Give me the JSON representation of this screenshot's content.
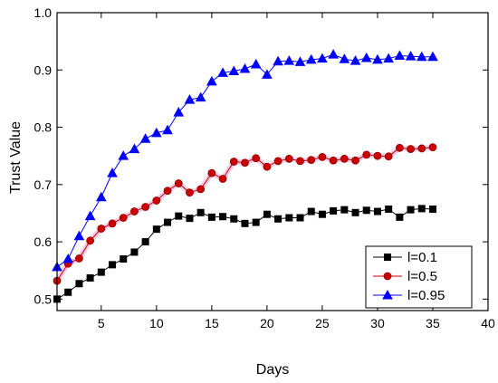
{
  "chart_data": {
    "type": "line",
    "xlabel": "Days",
    "ylabel": "Trust Value",
    "xlim": [
      1,
      40
    ],
    "ylim": [
      0.48,
      1.0
    ],
    "xticks": [
      5,
      10,
      15,
      20,
      25,
      30,
      35,
      40
    ],
    "yticks": [
      0.5,
      0.6,
      0.7,
      0.8,
      0.9,
      1.0
    ],
    "xtick_labels": [
      "5",
      "10",
      "15",
      "20",
      "25",
      "30",
      "35",
      "40"
    ],
    "ytick_labels": [
      "0.5",
      "0.6",
      "0.7",
      "0.8",
      "0.9",
      "1.0"
    ],
    "grid": false,
    "legend_position": "bottom-right",
    "x": [
      1,
      2,
      3,
      4,
      5,
      6,
      7,
      8,
      9,
      10,
      11,
      12,
      13,
      14,
      15,
      16,
      17,
      18,
      19,
      20,
      21,
      22,
      23,
      24,
      25,
      26,
      27,
      28,
      29,
      30,
      31,
      32,
      33,
      34,
      35
    ],
    "series": [
      {
        "name": "l=0.1",
        "color": "#000000",
        "marker": "square",
        "values": [
          0.5,
          0.512,
          0.527,
          0.537,
          0.547,
          0.56,
          0.57,
          0.582,
          0.6,
          0.622,
          0.634,
          0.645,
          0.641,
          0.651,
          0.643,
          0.644,
          0.64,
          0.632,
          0.634,
          0.648,
          0.64,
          0.642,
          0.642,
          0.653,
          0.648,
          0.654,
          0.656,
          0.651,
          0.655,
          0.653,
          0.657,
          0.643,
          0.656,
          0.658,
          0.657
        ]
      },
      {
        "name": "l=0.5",
        "color": "#cc0000",
        "marker": "circle",
        "values": [
          0.532,
          0.562,
          0.571,
          0.602,
          0.623,
          0.632,
          0.642,
          0.653,
          0.661,
          0.672,
          0.689,
          0.702,
          0.686,
          0.692,
          0.72,
          0.71,
          0.74,
          0.738,
          0.746,
          0.731,
          0.741,
          0.745,
          0.741,
          0.743,
          0.748,
          0.742,
          0.745,
          0.742,
          0.752,
          0.75,
          0.749,
          0.764,
          0.762,
          0.763,
          0.765
        ]
      },
      {
        "name": "l=0.95",
        "color": "#0000ff",
        "marker": "triangle",
        "values": [
          0.556,
          0.57,
          0.61,
          0.645,
          0.678,
          0.72,
          0.75,
          0.762,
          0.78,
          0.79,
          0.795,
          0.826,
          0.848,
          0.852,
          0.88,
          0.895,
          0.898,
          0.902,
          0.91,
          0.892,
          0.915,
          0.916,
          0.914,
          0.918,
          0.92,
          0.927,
          0.919,
          0.916,
          0.921,
          0.918,
          0.92,
          0.925,
          0.924,
          0.923,
          0.923
        ]
      }
    ]
  }
}
